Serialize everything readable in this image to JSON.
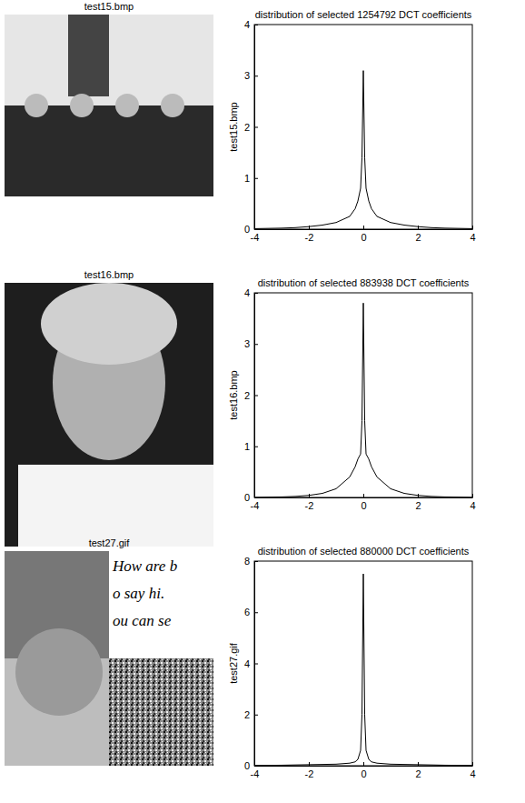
{
  "chart_data": [
    {
      "type": "line",
      "image_title": "test15.bmp",
      "title": "distribution of selected 1254792 DCT coefficients",
      "y_label": "test15.bmp",
      "color": "#000000",
      "x": [
        -4,
        -3,
        -2.5,
        -2,
        -1.5,
        -1,
        -0.5,
        -0.3,
        -0.2,
        -0.1,
        -0.05,
        0,
        0.05,
        0.1,
        0.2,
        0.3,
        0.5,
        1,
        1.5,
        2,
        2.5,
        3,
        4
      ],
      "values": [
        0.01,
        0.02,
        0.03,
        0.05,
        0.08,
        0.13,
        0.25,
        0.4,
        0.55,
        0.8,
        1.4,
        3.1,
        1.4,
        0.8,
        0.55,
        0.4,
        0.25,
        0.13,
        0.08,
        0.05,
        0.03,
        0.02,
        0.01
      ],
      "xlim": [
        -4,
        4
      ],
      "ylim": [
        0,
        4
      ],
      "xticks": [
        -4,
        -2,
        0,
        2,
        4
      ],
      "yticks": [
        0,
        1,
        2,
        3,
        4
      ]
    },
    {
      "type": "line",
      "image_title": "test16.bmp",
      "title": "distribution of selected 883938 DCT coefficients",
      "y_label": "test16.bmp",
      "color": "#000000",
      "x": [
        -4,
        -3,
        -2.5,
        -2,
        -1.5,
        -1,
        -0.5,
        -0.3,
        -0.2,
        -0.1,
        -0.05,
        0,
        0.05,
        0.1,
        0.2,
        0.3,
        0.5,
        1,
        1.5,
        2,
        2.5,
        3,
        4
      ],
      "values": [
        0,
        0.01,
        0.02,
        0.04,
        0.08,
        0.17,
        0.4,
        0.6,
        0.75,
        0.85,
        1.5,
        3.8,
        1.5,
        0.85,
        0.75,
        0.6,
        0.4,
        0.17,
        0.08,
        0.04,
        0.02,
        0.01,
        0
      ],
      "xlim": [
        -4,
        4
      ],
      "ylim": [
        0,
        4
      ],
      "xticks": [
        -4,
        -2,
        0,
        2,
        4
      ],
      "yticks": [
        0,
        1,
        2,
        3,
        4
      ]
    },
    {
      "type": "line",
      "image_title": "test27.gif",
      "image_text": [
        "How are b",
        "o say hi.",
        "ou can se"
      ],
      "title": "distribution of selected 880000 DCT coefficients",
      "y_label": "test27.gif",
      "color": "#000000",
      "x": [
        -4,
        -3,
        -2.5,
        -2,
        -1.5,
        -1,
        -0.5,
        -0.3,
        -0.2,
        -0.1,
        -0.05,
        0,
        0.05,
        0.1,
        0.2,
        0.3,
        0.5,
        1,
        1.5,
        2,
        2.5,
        3,
        4
      ],
      "values": [
        0.01,
        0.02,
        0.03,
        0.04,
        0.05,
        0.06,
        0.1,
        0.15,
        0.25,
        0.6,
        2.0,
        7.5,
        2.0,
        0.6,
        0.25,
        0.15,
        0.1,
        0.06,
        0.05,
        0.04,
        0.03,
        0.02,
        0.01
      ],
      "xlim": [
        -4,
        4
      ],
      "ylim": [
        0,
        8
      ],
      "xticks": [
        -4,
        -2,
        0,
        2,
        4
      ],
      "yticks": [
        0,
        2,
        4,
        6,
        8
      ]
    }
  ]
}
